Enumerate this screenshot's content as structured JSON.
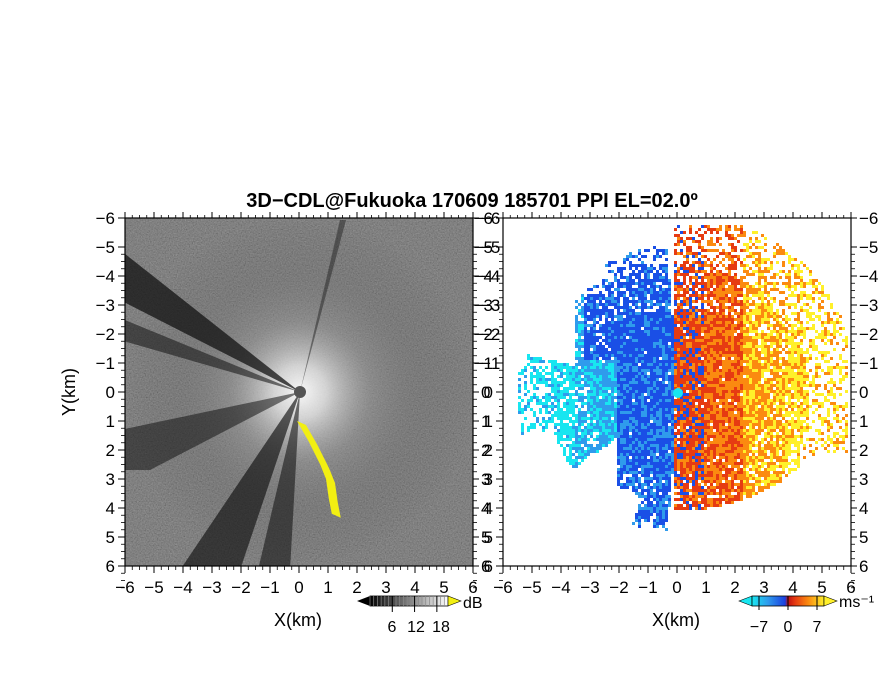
{
  "figure": {
    "title": "3D−CDL@Fukuoka 170609 185701 PPI EL=02.0º"
  },
  "chart_data": [
    {
      "type": "heatmap",
      "panel": "left",
      "title": "",
      "xlabel": "X(km)",
      "ylabel": "Y(km)",
      "xlim": [
        -6,
        6
      ],
      "ylim": [
        -6,
        6
      ],
      "x_ticks": [
        "−6",
        "−5",
        "−4",
        "−3",
        "−2",
        "−1",
        "0",
        "1",
        "2",
        "3",
        "4",
        "5",
        "6"
      ],
      "y_ticks": [
        "6",
        "5",
        "4",
        "3",
        "2",
        "1",
        "0",
        "−1",
        "−2",
        "−3",
        "−4",
        "−5",
        "−6"
      ],
      "colormap": "grayscale with yellow for values above 18",
      "colorbar": {
        "unit": "dB",
        "tick_labels": [
          "6",
          "12",
          "18"
        ],
        "range": [
          0,
          21
        ]
      },
      "radar_site": [
        0,
        0
      ],
      "yellow_band": {
        "description": "strong echo band",
        "x": [
          0.0,
          0.4,
          0.8,
          1.0,
          1.1,
          1.2
        ],
        "y": [
          -1.0,
          -1.7,
          -2.5,
          -3.0,
          -3.7,
          -4.2
        ]
      }
    },
    {
      "type": "heatmap",
      "panel": "right",
      "title": "",
      "xlabel": "X(km)",
      "ylabel": "",
      "xlim": [
        -6,
        6
      ],
      "ylim": [
        -6,
        6
      ],
      "x_ticks": [
        "−6",
        "−5",
        "−4",
        "−3",
        "−2",
        "−1",
        "0",
        "1",
        "2",
        "3",
        "4",
        "5",
        "6"
      ],
      "y_ticks": [
        "6",
        "5",
        "4",
        "3",
        "2",
        "1",
        "0",
        "−1",
        "−2",
        "−3",
        "−4",
        "−5",
        "−6"
      ],
      "colormap": "diverging cyan-blue (negative) to red-orange-yellow (positive)",
      "colorbar": {
        "unit": "ms⁻¹",
        "tick_labels": [
          "−7",
          "0",
          "7"
        ],
        "range": [
          -10,
          10
        ]
      },
      "radar_site": [
        0,
        0
      ]
    }
  ],
  "colors": {
    "neg_far": "#18e6f0",
    "neg_mid": "#2f9bec",
    "neg_near": "#1a4fe6",
    "pos_near": "#e63b12",
    "pos_mid": "#fb8a10",
    "pos_far": "#fff02a",
    "highlight": "#f2ef12"
  }
}
